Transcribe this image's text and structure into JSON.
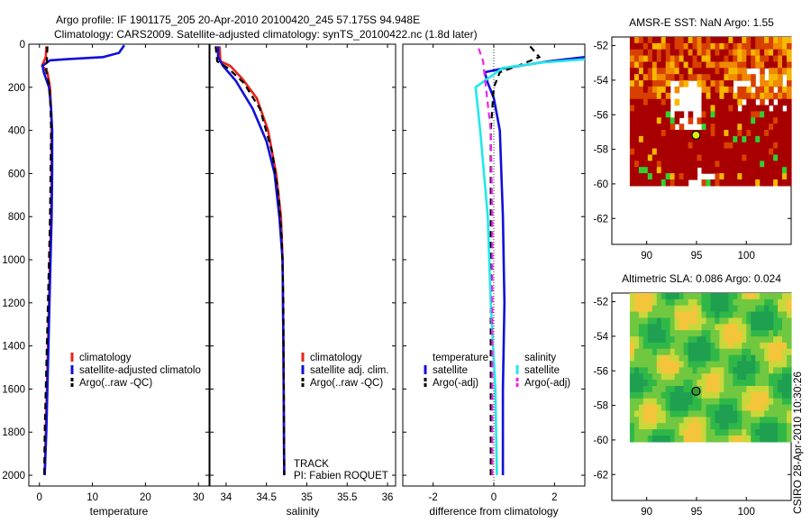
{
  "titles": {
    "line1": "Argo profile: IF 1901175_205 20-Apr-2010 20100420_245 57.175S 94.948E",
    "line2": "Climatology: CARS2009. Satellite-adjusted climatology: synTS_20100422.nc (1.8d later)"
  },
  "stamp": "CSIRO 28-Apr-2010 10:30:26",
  "colors": {
    "red": "#e8231c",
    "blue": "#1010d8",
    "black": "#000000",
    "cyan": "#22e8e8",
    "magenta": "#ee22ee"
  },
  "chart_data": [
    {
      "type": "line",
      "id": "temperature",
      "xlabel": "temperature",
      "xlim": [
        -2,
        32
      ],
      "ylim": [
        2050,
        0
      ],
      "xticks": [
        0,
        10,
        20,
        30
      ],
      "yticks": [
        0,
        200,
        400,
        600,
        800,
        1000,
        1200,
        1400,
        1600,
        1800,
        2000
      ],
      "legend": {
        "position": "lower-right",
        "entries": [
          "climatology",
          "satellite-adjusted climatolo",
          "Argo(..raw -QC)"
        ]
      },
      "series": [
        {
          "name": "climatology",
          "color": "red",
          "dash": false,
          "points": [
            [
              1.3,
              10
            ],
            [
              1.2,
              60
            ],
            [
              0.5,
              100
            ],
            [
              1.5,
              130
            ],
            [
              2.0,
              200
            ],
            [
              2.2,
              300
            ],
            [
              2.3,
              400
            ],
            [
              2.3,
              600
            ],
            [
              2.2,
              800
            ],
            [
              2.0,
              1000
            ],
            [
              1.8,
              1200
            ],
            [
              1.6,
              1400
            ],
            [
              1.4,
              1600
            ],
            [
              1.2,
              1800
            ],
            [
              1.0,
              2000
            ]
          ]
        },
        {
          "name": "satellite-adjusted climatolo",
          "color": "blue",
          "dash": false,
          "points": [
            [
              16,
              5
            ],
            [
              15,
              40
            ],
            [
              12,
              60
            ],
            [
              5,
              70
            ],
            [
              2,
              75
            ],
            [
              0.6,
              100
            ],
            [
              0.8,
              130
            ],
            [
              1.8,
              200
            ],
            [
              2.2,
              300
            ],
            [
              2.4,
              400
            ],
            [
              2.4,
              600
            ],
            [
              2.3,
              800
            ],
            [
              2.1,
              1000
            ],
            [
              1.9,
              1200
            ],
            [
              1.7,
              1400
            ],
            [
              1.5,
              1600
            ],
            [
              1.3,
              1800
            ],
            [
              1.0,
              2000
            ]
          ]
        },
        {
          "name": "Argo(..raw -QC)",
          "color": "black",
          "dash": true,
          "points": [
            [
              1.5,
              10
            ],
            [
              1.4,
              80
            ],
            [
              1.3,
              130
            ],
            [
              1.9,
              200
            ],
            [
              2.1,
              300
            ],
            [
              2.2,
              400
            ],
            [
              2.1,
              600
            ],
            [
              2.0,
              800
            ],
            [
              1.8,
              1000
            ],
            [
              1.6,
              1200
            ],
            [
              1.4,
              1400
            ],
            [
              1.2,
              1600
            ],
            [
              1.0,
              1800
            ],
            [
              0.9,
              2000
            ]
          ]
        }
      ]
    },
    {
      "type": "line",
      "id": "salinity",
      "xlabel": "salinity",
      "xlim": [
        33.8,
        36.1
      ],
      "ylim": [
        2050,
        0
      ],
      "xticks": [
        34,
        34.5,
        35,
        35.5,
        36
      ],
      "xticklabels": [
        "34",
        "34.5",
        "35",
        "35.5",
        "36"
      ],
      "legend": {
        "position": "lower-right",
        "entries": [
          "climatology",
          "satellite adj. clim.",
          "Argo(..raw -QC)"
        ]
      },
      "annotations": [
        "TRACK",
        "PI: Fabien ROQUET"
      ],
      "series": [
        {
          "name": "climatology",
          "color": "red",
          "dash": false,
          "points": [
            [
              33.92,
              10
            ],
            [
              33.93,
              80
            ],
            [
              34.05,
              100
            ],
            [
              34.2,
              160
            ],
            [
              34.38,
              250
            ],
            [
              34.52,
              400
            ],
            [
              34.62,
              600
            ],
            [
              34.68,
              800
            ],
            [
              34.7,
              1000
            ],
            [
              34.71,
              1400
            ],
            [
              34.72,
              2000
            ]
          ]
        },
        {
          "name": "satellite adj. clim.",
          "color": "blue",
          "dash": false,
          "points": [
            [
              33.9,
              10
            ],
            [
              33.9,
              60
            ],
            [
              33.96,
              100
            ],
            [
              34.12,
              170
            ],
            [
              34.33,
              300
            ],
            [
              34.5,
              450
            ],
            [
              34.6,
              600
            ],
            [
              34.66,
              800
            ],
            [
              34.7,
              1000
            ],
            [
              34.71,
              1400
            ],
            [
              34.72,
              2000
            ]
          ]
        },
        {
          "name": "Argo(..raw -QC)",
          "color": "black",
          "dash": true,
          "points": [
            [
              33.87,
              10
            ],
            [
              33.89,
              80
            ],
            [
              34.02,
              110
            ],
            [
              34.22,
              180
            ],
            [
              34.42,
              300
            ],
            [
              34.57,
              500
            ],
            [
              34.65,
              700
            ],
            [
              34.69,
              900
            ],
            [
              34.71,
              1200
            ],
            [
              34.72,
              2000
            ]
          ]
        }
      ]
    },
    {
      "type": "line",
      "id": "difference",
      "xlabel": "difference from climatology",
      "xlim": [
        -3,
        3
      ],
      "ylim": [
        2050,
        0
      ],
      "xticks": [
        -2,
        0,
        2
      ],
      "legend": {
        "position": "lower-center",
        "groups": [
          {
            "title": "temperature",
            "entries": [
              "satellite",
              "Argo(-adj)"
            ]
          },
          {
            "title": "salinity",
            "entries": [
              "satellite",
              "Argo(-adj)"
            ]
          }
        ]
      },
      "series": [
        {
          "name": "temperature satellite",
          "color": "blue",
          "dash": false,
          "points": [
            [
              3,
              60
            ],
            [
              1.8,
              80
            ],
            [
              0.4,
              110
            ],
            [
              -0.3,
              130
            ],
            [
              -0.2,
              180
            ],
            [
              0.0,
              250
            ],
            [
              0.2,
              400
            ],
            [
              0.3,
              800
            ],
            [
              0.35,
              1200
            ],
            [
              0.3,
              1600
            ],
            [
              0.3,
              2000
            ]
          ]
        },
        {
          "name": "temperature Argo(-adj)",
          "color": "black",
          "dash": true,
          "points": [
            [
              1.2,
              10
            ],
            [
              1.5,
              60
            ],
            [
              0.8,
              100
            ],
            [
              0.2,
              130
            ],
            [
              0.0,
              200
            ],
            [
              -0.1,
              400
            ],
            [
              -0.1,
              800
            ],
            [
              -0.1,
              1200
            ],
            [
              -0.1,
              1600
            ],
            [
              -0.1,
              2000
            ]
          ]
        },
        {
          "name": "salinity satellite",
          "color": "cyan",
          "dash": false,
          "points": [
            [
              3,
              70
            ],
            [
              1.6,
              85
            ],
            [
              0.3,
              110
            ],
            [
              -0.6,
              200
            ],
            [
              -0.45,
              400
            ],
            [
              -0.2,
              800
            ],
            [
              -0.1,
              1200
            ],
            [
              0.05,
              1600
            ],
            [
              0.1,
              2000
            ]
          ]
        },
        {
          "name": "salinity Argo(-adj)",
          "color": "magenta",
          "dash": true,
          "points": [
            [
              -0.5,
              20
            ],
            [
              -0.35,
              80
            ],
            [
              -0.3,
              150
            ],
            [
              -0.1,
              400
            ],
            [
              -0.05,
              800
            ],
            [
              -0.05,
              1200
            ],
            [
              -0.05,
              1600
            ],
            [
              -0.05,
              2000
            ]
          ]
        }
      ]
    },
    {
      "type": "heatmap",
      "id": "sst-map",
      "title": "AMSR-E SST: NaN Argo: 1.55",
      "xlim": [
        86.5,
        104.5
      ],
      "ylim": [
        -63.5,
        -51.5
      ],
      "xticks": [
        90,
        95,
        100
      ],
      "yticks": [
        -52,
        -54,
        -56,
        -58,
        -60,
        -62
      ],
      "argo_position": [
        94.95,
        -57.18
      ]
    },
    {
      "type": "heatmap",
      "id": "sla-map",
      "title": "Altimetric SLA: 0.086 Argo: 0.024",
      "xlim": [
        86.5,
        104.5
      ],
      "ylim": [
        -63.5,
        -51.5
      ],
      "xticks": [
        90,
        95,
        100
      ],
      "yticks": [
        -52,
        -54,
        -56,
        -58,
        -60,
        -62
      ],
      "argo_position": [
        94.95,
        -57.18
      ]
    }
  ]
}
